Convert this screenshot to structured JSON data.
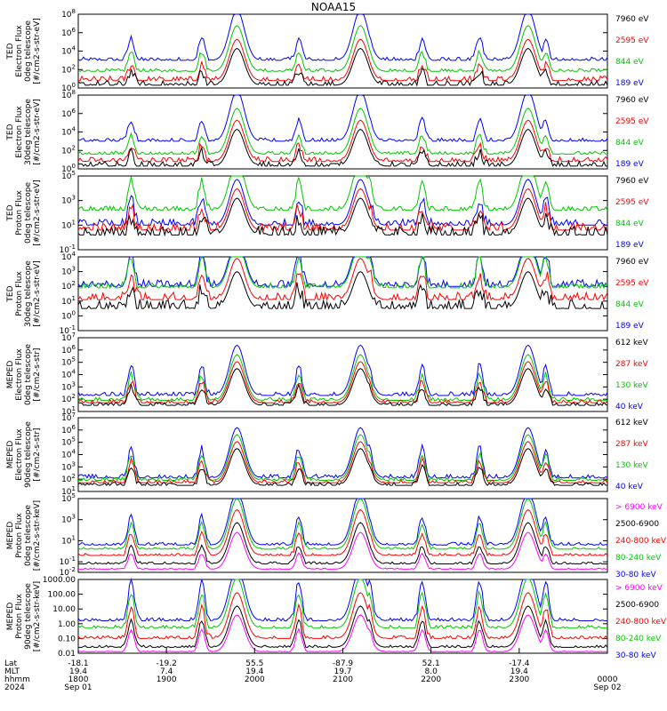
{
  "chart_data": {
    "type": "line",
    "title": "NOAA15",
    "x_axis": {
      "rows": [
        {
          "label": "Lat",
          "values": [
            "-18.1",
            "-19.2",
            "55.5",
            "-87.9",
            "52.1",
            "-17.4"
          ]
        },
        {
          "label": "MLT",
          "values": [
            "19.4",
            "7.4",
            "19.4",
            "19.7",
            "8.0",
            "19.4"
          ]
        },
        {
          "label": "hhmm",
          "values": [
            "1800",
            "1900",
            "2000",
            "2100",
            "2200",
            "2300",
            "0000"
          ]
        },
        {
          "label": "2024",
          "values": [
            "Sep 01",
            "",
            "",
            "",
            "",
            "",
            "Sep 02"
          ]
        }
      ]
    },
    "panels": [
      {
        "ylabel": [
          "TED",
          "Electron Flux",
          "0deg telescope",
          "[#/cm2-s-str-eV]"
        ],
        "yticks": [
          "10^0",
          "10^2",
          "10^4",
          "10^6",
          "10^8"
        ],
        "ylog": [
          0,
          8
        ],
        "legend": [
          {
            "text": "7960 eV",
            "color": "#000000"
          },
          {
            "text": "2595 eV",
            "color": "#ff0000"
          },
          {
            "text": "844 eV",
            "color": "#00c800"
          },
          {
            "text": "189 eV",
            "color": "#0000ff"
          }
        ],
        "series": [
          {
            "color": "#0000ff",
            "baseline": 3.0,
            "noise": 0.35
          },
          {
            "color": "#00c800",
            "baseline": 1.8,
            "noise": 0.3
          },
          {
            "color": "#ff0000",
            "baseline": 0.8,
            "noise": 0.5
          },
          {
            "color": "#000000",
            "baseline": 0.3,
            "noise": 0.5
          }
        ]
      },
      {
        "ylabel": [
          "TED",
          "Electron Flux",
          "30deg telescope",
          "[#/cm2-s-str-eV]"
        ],
        "yticks": [
          "10^0",
          "10^2",
          "10^4",
          "10^6",
          "10^8"
        ],
        "ylog": [
          0,
          8
        ],
        "legend": [
          {
            "text": "7960 eV",
            "color": "#000000"
          },
          {
            "text": "2595 eV",
            "color": "#ff0000"
          },
          {
            "text": "844 eV",
            "color": "#00c800"
          },
          {
            "text": "189 eV",
            "color": "#0000ff"
          }
        ],
        "series": [
          {
            "color": "#0000ff",
            "baseline": 3.0,
            "noise": 0.35
          },
          {
            "color": "#00c800",
            "baseline": 1.6,
            "noise": 0.3
          },
          {
            "color": "#ff0000",
            "baseline": 0.8,
            "noise": 0.5
          },
          {
            "color": "#000000",
            "baseline": 0.3,
            "noise": 0.5
          }
        ]
      },
      {
        "ylabel": [
          "TED",
          "Proton Flux",
          "0deg telescope",
          "[#/cm2-s-str-eV]"
        ],
        "yticks": [
          "10^-1",
          "10^1",
          "10^3",
          "10^5"
        ],
        "ylog": [
          -1,
          5
        ],
        "legend": [
          {
            "text": "7960 eV",
            "color": "#000000"
          },
          {
            "text": "2595 eV",
            "color": "#ff0000"
          },
          {
            "text": "844 eV",
            "color": "#00c800"
          },
          {
            "text": "189 eV",
            "color": "#0000ff"
          }
        ],
        "series": [
          {
            "color": "#00c800",
            "baseline": 2.2,
            "noise": 0.35
          },
          {
            "color": "#0000ff",
            "baseline": 1.0,
            "noise": 0.5
          },
          {
            "color": "#ff0000",
            "baseline": 0.6,
            "noise": 0.6
          },
          {
            "color": "#000000",
            "baseline": 0.2,
            "noise": 0.7
          }
        ]
      },
      {
        "ylabel": [
          "TED",
          "Proton Flux",
          "30deg telescope",
          "[#/cm2-s-str-eV]"
        ],
        "yticks": [
          "10^-1",
          "10^0",
          "10^1",
          "10^2",
          "10^3",
          "10^4"
        ],
        "ylog": [
          -1,
          4
        ],
        "legend": [
          {
            "text": "7960 eV",
            "color": "#000000"
          },
          {
            "text": "2595 eV",
            "color": "#ff0000"
          },
          {
            "text": "844 eV",
            "color": "#00c800"
          },
          {
            "text": "189 eV",
            "color": "#0000ff"
          }
        ],
        "series": [
          {
            "color": "#0000ff",
            "baseline": 2.0,
            "noise": 0.45
          },
          {
            "color": "#00c800",
            "baseline": 1.9,
            "noise": 0.35
          },
          {
            "color": "#ff0000",
            "baseline": 1.1,
            "noise": 0.5
          },
          {
            "color": "#000000",
            "baseline": 0.5,
            "noise": 0.6
          }
        ]
      },
      {
        "ylabel": [
          "MEPED",
          "Electron Flux",
          "0deg telescope",
          "[#/cm2-s-str]"
        ],
        "yticks": [
          "10^1",
          "10^2",
          "10^3",
          "10^4",
          "10^5",
          "10^6",
          "10^7"
        ],
        "ylog": [
          1,
          7
        ],
        "legend": [
          {
            "text": "612 keV",
            "color": "#000000"
          },
          {
            "text": "287 keV",
            "color": "#ff0000"
          },
          {
            "text": "130 keV",
            "color": "#00c800"
          },
          {
            "text": "40 keV",
            "color": "#0000ff"
          }
        ],
        "series": [
          {
            "color": "#0000ff",
            "baseline": 2.3,
            "noise": 0.3
          },
          {
            "color": "#00c800",
            "baseline": 1.9,
            "noise": 0.25
          },
          {
            "color": "#ff0000",
            "baseline": 1.7,
            "noise": 0.25
          },
          {
            "color": "#000000",
            "baseline": 1.5,
            "noise": 0.25
          }
        ]
      },
      {
        "ylabel": [
          "MEPED",
          "Electron Flux",
          "90deg telescope",
          "[#/cm2-s-str]"
        ],
        "yticks": [
          "10^1",
          "10^2",
          "10^3",
          "10^4",
          "10^5",
          "10^6",
          "10^7"
        ],
        "ylog": [
          1,
          7
        ],
        "legend": [
          {
            "text": "612 keV",
            "color": "#000000"
          },
          {
            "text": "287 keV",
            "color": "#ff0000"
          },
          {
            "text": "130 keV",
            "color": "#00c800"
          },
          {
            "text": "40 keV",
            "color": "#0000ff"
          }
        ],
        "series": [
          {
            "color": "#0000ff",
            "baseline": 2.1,
            "noise": 0.3
          },
          {
            "color": "#00c800",
            "baseline": 1.9,
            "noise": 0.25
          },
          {
            "color": "#ff0000",
            "baseline": 1.7,
            "noise": 0.25
          },
          {
            "color": "#000000",
            "baseline": 1.5,
            "noise": 0.25
          }
        ]
      },
      {
        "ylabel": [
          "MEPED",
          "Proton Flux",
          "0deg telescope",
          "[#/cm2-s-str-keV]"
        ],
        "yticks": [
          "10^-2",
          "10^-1",
          "10^1",
          "10^3",
          "10^5"
        ],
        "ylog": [
          -2,
          5
        ],
        "legend": [
          {
            "text": "> 6900 keV",
            "color": "#ff00ff"
          },
          {
            "text": "2500-6900",
            "color": "#000000"
          },
          {
            "text": "240-800 keV",
            "color": "#ff0000"
          },
          {
            "text": "80-240 keV",
            "color": "#00c800"
          },
          {
            "text": "30-80 keV",
            "color": "#0000ff"
          }
        ],
        "series": [
          {
            "color": "#0000ff",
            "baseline": 0.6,
            "noise": 0.25
          },
          {
            "color": "#00c800",
            "baseline": 0.2,
            "noise": 0.2
          },
          {
            "color": "#ff0000",
            "baseline": -0.4,
            "noise": 0.2
          },
          {
            "color": "#000000",
            "baseline": -1.2,
            "noise": 0.2
          },
          {
            "color": "#ff00ff",
            "baseline": -1.7,
            "noise": 0.1
          }
        ]
      },
      {
        "ylabel": [
          "MEPED",
          "Proton Flux",
          "90deg telescope",
          "[#/cm2-s-str-keV]"
        ],
        "yticks": [
          "0.01",
          "0.10",
          "1.00",
          "10.00",
          "100.00",
          "1000.00"
        ],
        "ylog": [
          -2,
          3
        ],
        "legend": [
          {
            "text": "> 6900 keV",
            "color": "#ff00ff"
          },
          {
            "text": "2500-6900",
            "color": "#000000"
          },
          {
            "text": "240-800 keV",
            "color": "#ff0000"
          },
          {
            "text": "80-240 keV",
            "color": "#00c800"
          },
          {
            "text": "30-80 keV",
            "color": "#0000ff"
          }
        ],
        "series": [
          {
            "color": "#0000ff",
            "baseline": 0.2,
            "noise": 0.2
          },
          {
            "color": "#00c800",
            "baseline": -0.3,
            "noise": 0.2
          },
          {
            "color": "#ff0000",
            "baseline": -1.0,
            "noise": 0.2
          },
          {
            "color": "#000000",
            "baseline": -1.6,
            "noise": 0.15
          },
          {
            "color": "#ff00ff",
            "baseline": -1.9,
            "noise": 0.05
          }
        ]
      }
    ],
    "pass_centers_hours": [
      18.6,
      19.4,
      19.8,
      20.5,
      21.3,
      21.9,
      22.55,
      23.3
    ],
    "radbelt_centers_hours": [
      19.8,
      21.2,
      23.1
    ],
    "time_range_hours": [
      18,
      24
    ]
  }
}
